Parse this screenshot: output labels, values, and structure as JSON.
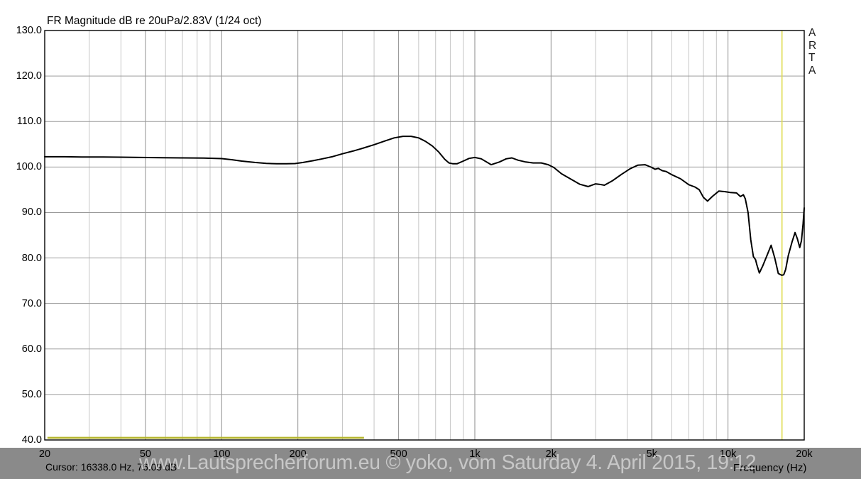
{
  "header": {
    "title": "FR Magnitude dB re 20uPa/2.83V (1/24 oct)"
  },
  "branding": {
    "vertical_label": "ARTA"
  },
  "status_bar": {
    "cursor_readout": "Cursor: 16338.0 Hz, 76.09 dB",
    "axis_label": "Frequency (Hz)",
    "watermark": "www.Lautsprecherforum.eu © yoko, vom Saturday 4. April 2015, 19:12"
  },
  "colors": {
    "background": "#ffffff",
    "frame": "#000000",
    "grid_minor": "#c6c6c6",
    "grid_major": "#8f8f8f",
    "grid_horizontal": "#9a9a9a",
    "curve": "#000000",
    "cursor_line": "#e0dd50",
    "overlay_line": "#b5b52d",
    "status_bar_bg": "#8a8a8a"
  },
  "chart_data": {
    "type": "line",
    "title": "FR Magnitude dB re 20uPa/2.83V (1/24 oct)",
    "xlabel": "Frequency (Hz)",
    "ylabel": "dB re 20uPa/2.83V",
    "x_scale": "log",
    "xlim": [
      20,
      20000
    ],
    "ylim": [
      40,
      130
    ],
    "grid": true,
    "x_ticks": [
      {
        "value": 20,
        "label": "20"
      },
      {
        "value": 50,
        "label": "50"
      },
      {
        "value": 100,
        "label": "100"
      },
      {
        "value": 200,
        "label": "200"
      },
      {
        "value": 500,
        "label": "500"
      },
      {
        "value": 1000,
        "label": "1k"
      },
      {
        "value": 2000,
        "label": "2k"
      },
      {
        "value": 5000,
        "label": "5k"
      },
      {
        "value": 10000,
        "label": "10k"
      },
      {
        "value": 20000,
        "label": "20k"
      }
    ],
    "y_ticks": [
      {
        "value": 130,
        "label": "130.0"
      },
      {
        "value": 120,
        "label": "120.0"
      },
      {
        "value": 110,
        "label": "110.0"
      },
      {
        "value": 100,
        "label": "100.0"
      },
      {
        "value": 90,
        "label": "90.0"
      },
      {
        "value": 80,
        "label": "80.0"
      },
      {
        "value": 70,
        "label": "70.0"
      },
      {
        "value": 60,
        "label": "60.0"
      },
      {
        "value": 50,
        "label": "50.0"
      },
      {
        "value": 40,
        "label": "40.0"
      }
    ],
    "x_grid_minor": [
      30,
      40,
      60,
      70,
      80,
      90,
      300,
      400,
      600,
      700,
      800,
      900,
      3000,
      4000,
      6000,
      7000,
      8000,
      9000
    ],
    "x_grid_major": [
      50,
      100,
      200,
      500,
      1000,
      2000,
      5000,
      10000
    ],
    "y_grid": [
      50,
      60,
      70,
      80,
      90,
      100,
      110,
      120
    ],
    "cursor": {
      "frequency_hz": 16338.0,
      "magnitude_db": 76.09
    },
    "series": [
      {
        "name": "fr-magnitude-curve",
        "points": [
          [
            20,
            102.25
          ],
          [
            24,
            102.25
          ],
          [
            28,
            102.2
          ],
          [
            34,
            102.2
          ],
          [
            40,
            102.15
          ],
          [
            48,
            102.1
          ],
          [
            58,
            102.05
          ],
          [
            70,
            102.0
          ],
          [
            85,
            101.95
          ],
          [
            100,
            101.85
          ],
          [
            110,
            101.6
          ],
          [
            120,
            101.3
          ],
          [
            135,
            101.0
          ],
          [
            150,
            100.8
          ],
          [
            165,
            100.7
          ],
          [
            180,
            100.7
          ],
          [
            195,
            100.75
          ],
          [
            210,
            101.0
          ],
          [
            230,
            101.4
          ],
          [
            250,
            101.8
          ],
          [
            275,
            102.3
          ],
          [
            300,
            102.9
          ],
          [
            330,
            103.5
          ],
          [
            360,
            104.1
          ],
          [
            400,
            104.9
          ],
          [
            440,
            105.7
          ],
          [
            480,
            106.4
          ],
          [
            520,
            106.75
          ],
          [
            560,
            106.75
          ],
          [
            600,
            106.4
          ],
          [
            640,
            105.6
          ],
          [
            680,
            104.6
          ],
          [
            720,
            103.3
          ],
          [
            760,
            101.7
          ],
          [
            790,
            100.9
          ],
          [
            820,
            100.7
          ],
          [
            850,
            100.7
          ],
          [
            900,
            101.3
          ],
          [
            950,
            101.9
          ],
          [
            1000,
            102.1
          ],
          [
            1060,
            101.8
          ],
          [
            1160,
            100.5
          ],
          [
            1250,
            101.1
          ],
          [
            1330,
            101.8
          ],
          [
            1400,
            102.0
          ],
          [
            1480,
            101.5
          ],
          [
            1590,
            101.1
          ],
          [
            1700,
            100.9
          ],
          [
            1830,
            100.9
          ],
          [
            1950,
            100.5
          ],
          [
            2050,
            99.9
          ],
          [
            2200,
            98.5
          ],
          [
            2400,
            97.3
          ],
          [
            2600,
            96.2
          ],
          [
            2800,
            95.7
          ],
          [
            3000,
            96.3
          ],
          [
            3100,
            96.2
          ],
          [
            3250,
            96.0
          ],
          [
            3500,
            97.0
          ],
          [
            3800,
            98.4
          ],
          [
            4100,
            99.6
          ],
          [
            4400,
            100.4
          ],
          [
            4700,
            100.5
          ],
          [
            5000,
            99.9
          ],
          [
            5150,
            99.5
          ],
          [
            5300,
            99.7
          ],
          [
            5500,
            99.2
          ],
          [
            5700,
            99.0
          ],
          [
            6000,
            98.3
          ],
          [
            6500,
            97.4
          ],
          [
            7000,
            96.1
          ],
          [
            7400,
            95.6
          ],
          [
            7700,
            95.0
          ],
          [
            8000,
            93.3
          ],
          [
            8300,
            92.5
          ],
          [
            8700,
            93.6
          ],
          [
            9200,
            94.7
          ],
          [
            9700,
            94.6
          ],
          [
            10200,
            94.4
          ],
          [
            10800,
            94.3
          ],
          [
            11200,
            93.5
          ],
          [
            11500,
            93.9
          ],
          [
            11700,
            93.0
          ],
          [
            12000,
            90.0
          ],
          [
            12300,
            84.0
          ],
          [
            12600,
            80.3
          ],
          [
            12850,
            79.6
          ],
          [
            13000,
            78.5
          ],
          [
            13300,
            76.7
          ],
          [
            13700,
            78.2
          ],
          [
            14200,
            80.3
          ],
          [
            14800,
            82.8
          ],
          [
            15300,
            80.0
          ],
          [
            15800,
            76.6
          ],
          [
            16300,
            76.2
          ],
          [
            16600,
            76.3
          ],
          [
            16900,
            77.5
          ],
          [
            17300,
            80.5
          ],
          [
            17900,
            83.5
          ],
          [
            18400,
            85.6
          ],
          [
            18800,
            84.2
          ],
          [
            19200,
            82.3
          ],
          [
            19500,
            83.8
          ],
          [
            19800,
            87.5
          ],
          [
            20000,
            91.0
          ]
        ]
      },
      {
        "name": "overlay-baseline",
        "points": [
          [
            20.5,
            40.35
          ],
          [
            365,
            40.35
          ]
        ]
      }
    ]
  }
}
